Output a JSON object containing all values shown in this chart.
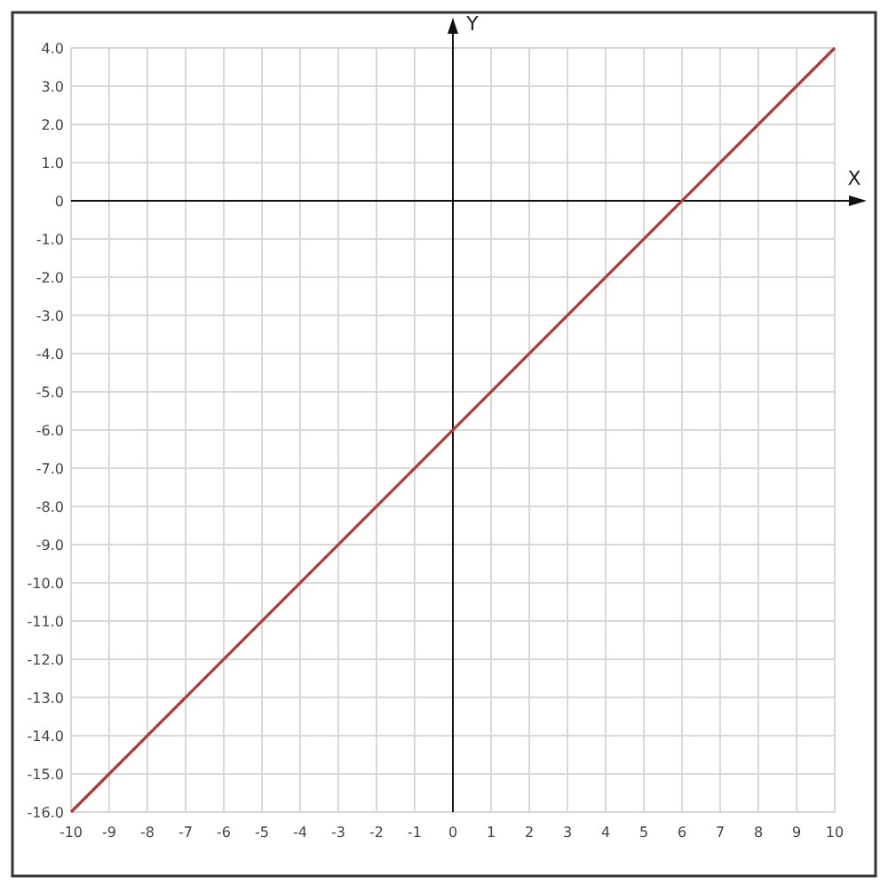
{
  "chart_data": {
    "type": "line",
    "xlabel": "X",
    "ylabel": "Y",
    "x": [
      -10,
      10
    ],
    "series": [
      {
        "color": "#b03a3a",
        "values": [
          -16,
          4
        ]
      }
    ],
    "xlim": [
      -10,
      10
    ],
    "ylim": [
      -16,
      4
    ],
    "xticks": [
      -10,
      -9,
      -8,
      -7,
      -6,
      -5,
      -4,
      -3,
      -2,
      -1,
      0,
      1,
      2,
      3,
      4,
      5,
      6,
      7,
      8,
      9,
      10
    ],
    "yticks": [
      {
        "value": 4,
        "label": "4.0"
      },
      {
        "value": 3,
        "label": "3.0"
      },
      {
        "value": 2,
        "label": "2.0"
      },
      {
        "value": 1,
        "label": "1.0"
      },
      0,
      {
        "value": -1,
        "label": "-1.0"
      },
      {
        "value": -2,
        "label": "-2.0"
      },
      {
        "value": -3,
        "label": "-3.0"
      },
      {
        "value": -4,
        "label": "-4.0"
      },
      {
        "value": -5,
        "label": "-5.0"
      },
      {
        "value": -6,
        "label": "-6.0"
      },
      {
        "value": -7,
        "label": "-7.0"
      },
      {
        "value": -8,
        "label": "-8.0"
      },
      {
        "value": -9,
        "label": "-9.0"
      },
      {
        "value": -10,
        "label": "-10.0"
      },
      {
        "value": -11,
        "label": "-11.0"
      },
      {
        "value": -12,
        "label": "-12.0"
      },
      {
        "value": -13,
        "label": "-13.0"
      },
      {
        "value": -14,
        "label": "-14.0"
      },
      {
        "value": -15,
        "label": "-15.0"
      },
      {
        "value": -16,
        "label": "-16.0"
      }
    ],
    "grid": true,
    "marker": "none",
    "line_style": "solid"
  }
}
